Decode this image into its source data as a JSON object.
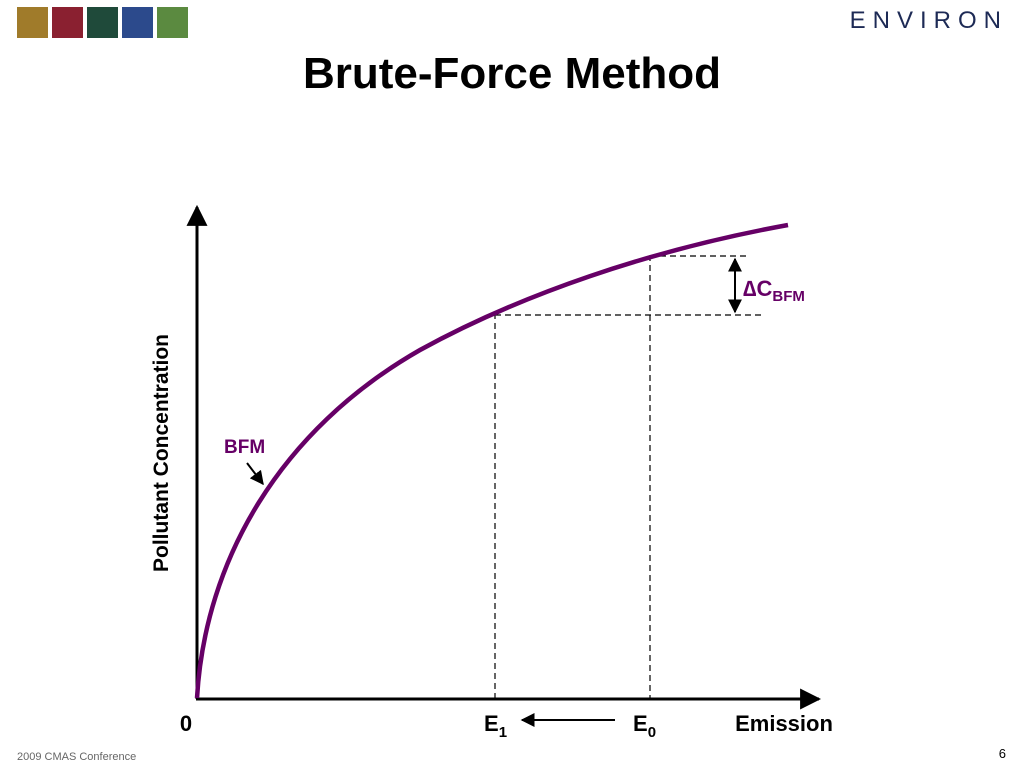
{
  "header": {
    "logo": "ENVIRON",
    "title": "Brute-Force Method"
  },
  "diagram": {
    "y_axis_label": "Pollutant Concentration",
    "x_axis_label": "Emission",
    "origin_label": "0",
    "e1": {
      "main": "E",
      "sub": "1"
    },
    "e0": {
      "main": "E",
      "sub": "0"
    },
    "curve_label": "BFM",
    "delta_c": {
      "main": "∆C",
      "sub": "BFM"
    }
  },
  "footer": {
    "text": "2009 CMAS Conference",
    "page": "6"
  }
}
